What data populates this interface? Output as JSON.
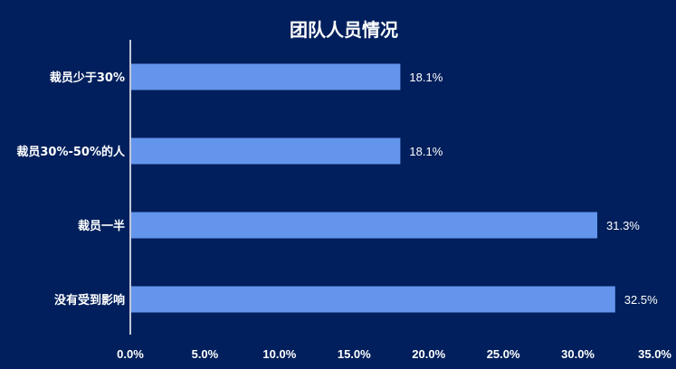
{
  "chart_data": {
    "type": "bar",
    "orientation": "horizontal",
    "title": "团队人员情况",
    "categories": [
      "裁员少于30%",
      "裁员30%-50%的人",
      "裁员一半",
      "没有受到影响"
    ],
    "values": [
      18.1,
      18.1,
      31.3,
      32.5
    ],
    "value_labels": [
      "18.1%",
      "18.1%",
      "31.3%",
      "32.5%"
    ],
    "xlim": [
      0,
      35
    ],
    "x_ticks": [
      0,
      5,
      10,
      15,
      20,
      25,
      30,
      35
    ],
    "x_tick_labels": [
      "0.0%",
      "5.0%",
      "10.0%",
      "15.0%",
      "20.0%",
      "25.0%",
      "30.0%",
      "35.0%"
    ],
    "xlabel": "",
    "ylabel": "",
    "grid": false,
    "legend": "none",
    "colors": {
      "background": "#001f5c",
      "bar": "#6495ed",
      "axis": "#ffffff",
      "text": "#ffffff"
    }
  }
}
